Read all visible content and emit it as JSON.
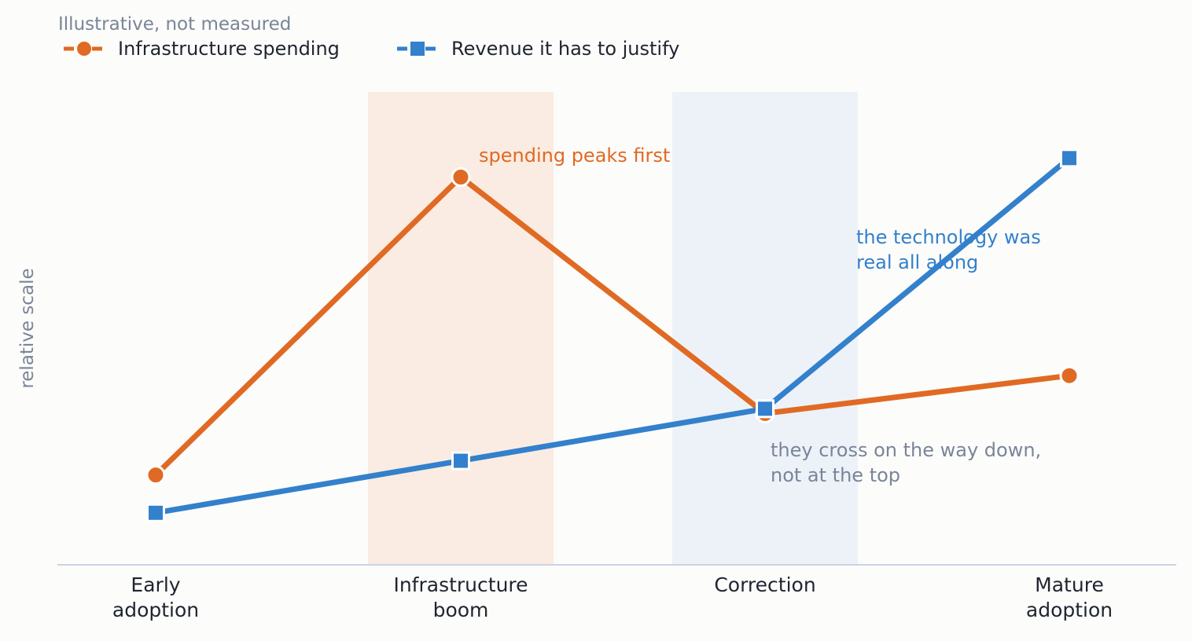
{
  "chart_data": {
    "type": "line",
    "subtitle": "Illustrative, not measured",
    "ylabel": "relative scale",
    "xlabel": "",
    "categories": [
      [
        "Early",
        "adoption"
      ],
      [
        "Infrastructure",
        "boom"
      ],
      [
        "Correction"
      ],
      [
        "Mature",
        "adoption"
      ]
    ],
    "ylim": [
      0,
      100
    ],
    "grid": false,
    "legend_position": "top-left",
    "series": [
      {
        "name": "Infrastructure spending",
        "values": [
          19,
          82,
          32,
          40
        ],
        "color": "#e06a24",
        "marker": "circle"
      },
      {
        "name": "Revenue it has to justify",
        "values": [
          11,
          22,
          33,
          86
        ],
        "color": "#3380cc",
        "marker": "square"
      }
    ],
    "highlight_bands": [
      {
        "category_index": 1,
        "color": "#faece2"
      },
      {
        "category_index": 2,
        "color": "#edf2f8"
      }
    ],
    "annotations": [
      {
        "lines": [
          "spending peaks first"
        ],
        "color": "#e06a24"
      },
      {
        "lines": [
          "the technology was",
          "real all along"
        ],
        "color": "#3380cc"
      },
      {
        "lines": [
          "they cross on the way down,",
          "not at the top"
        ],
        "color": "#7a8599"
      }
    ],
    "axis_color": "#c9d3e3"
  }
}
